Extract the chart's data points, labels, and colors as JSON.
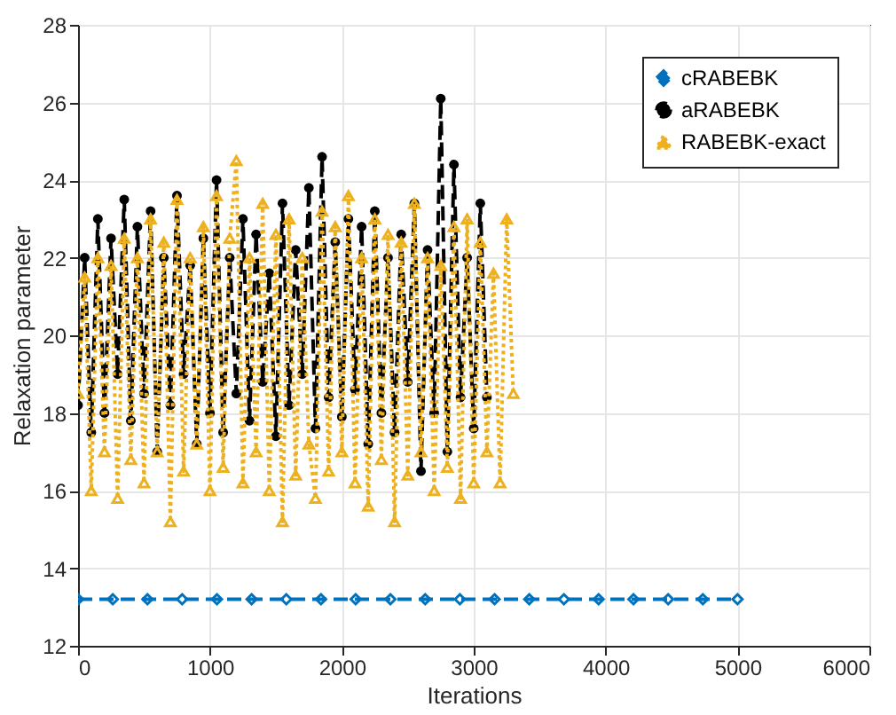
{
  "chart_data": {
    "type": "line",
    "xlabel": "Iterations",
    "ylabel": "Relaxation parameter",
    "xlim": [
      0,
      6000
    ],
    "xticks": [
      0,
      1000,
      2000,
      3000,
      4000,
      5000,
      6000
    ],
    "ylim": [
      12,
      28
    ],
    "yticks": [
      12,
      14,
      16,
      18,
      20,
      22,
      24,
      26,
      28
    ],
    "grid": true,
    "legend": "top right",
    "series": [
      {
        "name": "cRABEBK",
        "color": "#0072bd",
        "line_style": "dashed",
        "marker": "diamond",
        "x": [
          0,
          263,
          526,
          789,
          1053,
          1316,
          1579,
          1842,
          2105,
          2368,
          2632,
          2895,
          3158,
          3421,
          3684,
          3947,
          4211,
          4474,
          4737,
          5000
        ],
        "values": [
          13.2,
          13.2,
          13.2,
          13.2,
          13.2,
          13.2,
          13.2,
          13.2,
          13.2,
          13.2,
          13.2,
          13.2,
          13.2,
          13.2,
          13.2,
          13.2,
          13.2,
          13.2,
          13.2,
          13.2
        ]
      },
      {
        "name": "aRABEBK",
        "color": "#000000",
        "line_style": "dashed",
        "marker": "circle",
        "x": [
          0,
          50,
          100,
          150,
          200,
          250,
          300,
          350,
          400,
          450,
          500,
          550,
          600,
          650,
          700,
          750,
          800,
          850,
          900,
          950,
          1000,
          1050,
          1100,
          1150,
          1200,
          1250,
          1300,
          1350,
          1400,
          1450,
          1500,
          1550,
          1600,
          1650,
          1700,
          1750,
          1800,
          1850,
          1900,
          1950,
          2000,
          2050,
          2100,
          2150,
          2200,
          2250,
          2300,
          2350,
          2400,
          2450,
          2500,
          2550,
          2600,
          2650,
          2700,
          2750,
          2800,
          2850,
          2900,
          2950,
          3000,
          3050,
          3100
        ],
        "values": [
          18.2,
          22.0,
          17.5,
          23.0,
          18.0,
          22.5,
          19.0,
          23.5,
          17.8,
          22.8,
          18.5,
          23.2,
          17.0,
          22.0,
          18.2,
          23.6,
          19.0,
          21.8,
          17.2,
          22.5,
          18.0,
          24.0,
          17.5,
          22.0,
          18.5,
          23.0,
          17.8,
          22.6,
          18.8,
          21.6,
          17.4,
          23.4,
          18.2,
          22.2,
          19.0,
          23.8,
          17.6,
          24.6,
          18.4,
          22.4,
          17.9,
          23.0,
          18.6,
          22.8,
          17.2,
          23.2,
          18.0,
          22.0,
          17.5,
          22.6,
          18.8,
          23.4,
          16.5,
          22.2,
          18.0,
          26.1,
          17.0,
          24.4,
          18.4,
          22.0,
          17.6,
          23.4,
          18.4
        ]
      },
      {
        "name": "RABEBK-exact",
        "color": "#edb120",
        "line_style": "dotted",
        "marker": "triangle",
        "x": [
          0,
          50,
          100,
          150,
          200,
          250,
          300,
          350,
          400,
          450,
          500,
          550,
          600,
          650,
          700,
          750,
          800,
          850,
          900,
          950,
          1000,
          1050,
          1100,
          1150,
          1200,
          1250,
          1300,
          1350,
          1400,
          1450,
          1500,
          1550,
          1600,
          1650,
          1700,
          1750,
          1800,
          1850,
          1900,
          1950,
          2000,
          2050,
          2100,
          2150,
          2200,
          2250,
          2300,
          2350,
          2400,
          2450,
          2500,
          2550,
          2600,
          2650,
          2700,
          2750,
          2800,
          2850,
          2900,
          2950,
          3000,
          3050,
          3100,
          3150,
          3200,
          3250,
          3300
        ],
        "values": [
          18.5,
          21.5,
          16.0,
          22.0,
          17.0,
          21.8,
          15.8,
          22.5,
          16.8,
          22.0,
          16.2,
          23.0,
          17.0,
          22.4,
          15.2,
          23.5,
          16.5,
          22.0,
          17.2,
          22.8,
          16.0,
          23.6,
          16.6,
          22.5,
          24.5,
          16.2,
          22.0,
          17.0,
          23.4,
          16.0,
          22.6,
          15.2,
          23.0,
          16.4,
          22.0,
          17.2,
          15.8,
          23.2,
          16.5,
          22.8,
          17.0,
          23.6,
          16.2,
          22.0,
          15.6,
          23.0,
          16.8,
          22.6,
          15.2,
          22.4,
          16.4,
          23.4,
          17.0,
          22.0,
          16.0,
          21.8,
          16.6,
          22.8,
          15.8,
          23.0,
          16.2,
          22.4,
          17.0,
          21.6,
          16.2,
          23.0,
          18.5
        ]
      }
    ]
  }
}
